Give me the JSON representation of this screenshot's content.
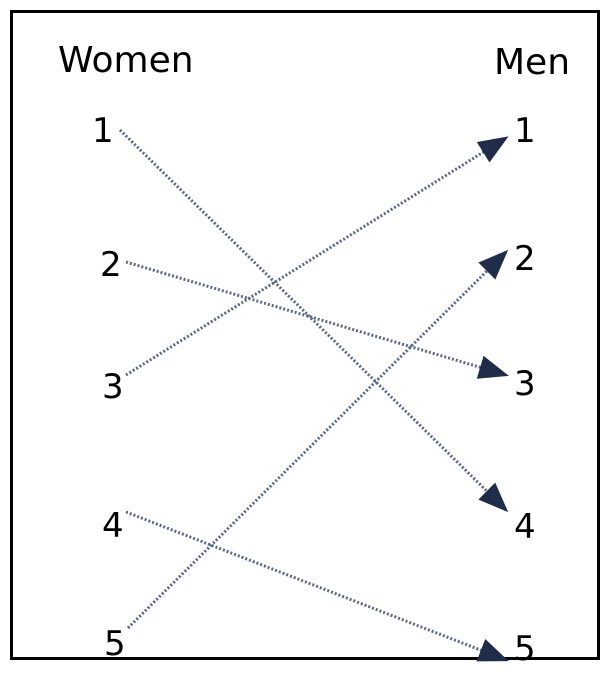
{
  "diagram": {
    "left_heading": "Women",
    "right_heading": "Men",
    "left_nodes": [
      "1",
      "2",
      "3",
      "4",
      "5"
    ],
    "right_nodes": [
      "1",
      "2",
      "3",
      "4",
      "5"
    ],
    "matches": [
      {
        "from": "1",
        "to": "4"
      },
      {
        "from": "2",
        "to": "3"
      },
      {
        "from": "3",
        "to": "1"
      },
      {
        "from": "4",
        "to": "5"
      },
      {
        "from": "5",
        "to": "2"
      }
    ],
    "colors": {
      "arrow": "#5a6a86",
      "arrowhead": "#1f2d4a",
      "border": "#000000"
    }
  }
}
